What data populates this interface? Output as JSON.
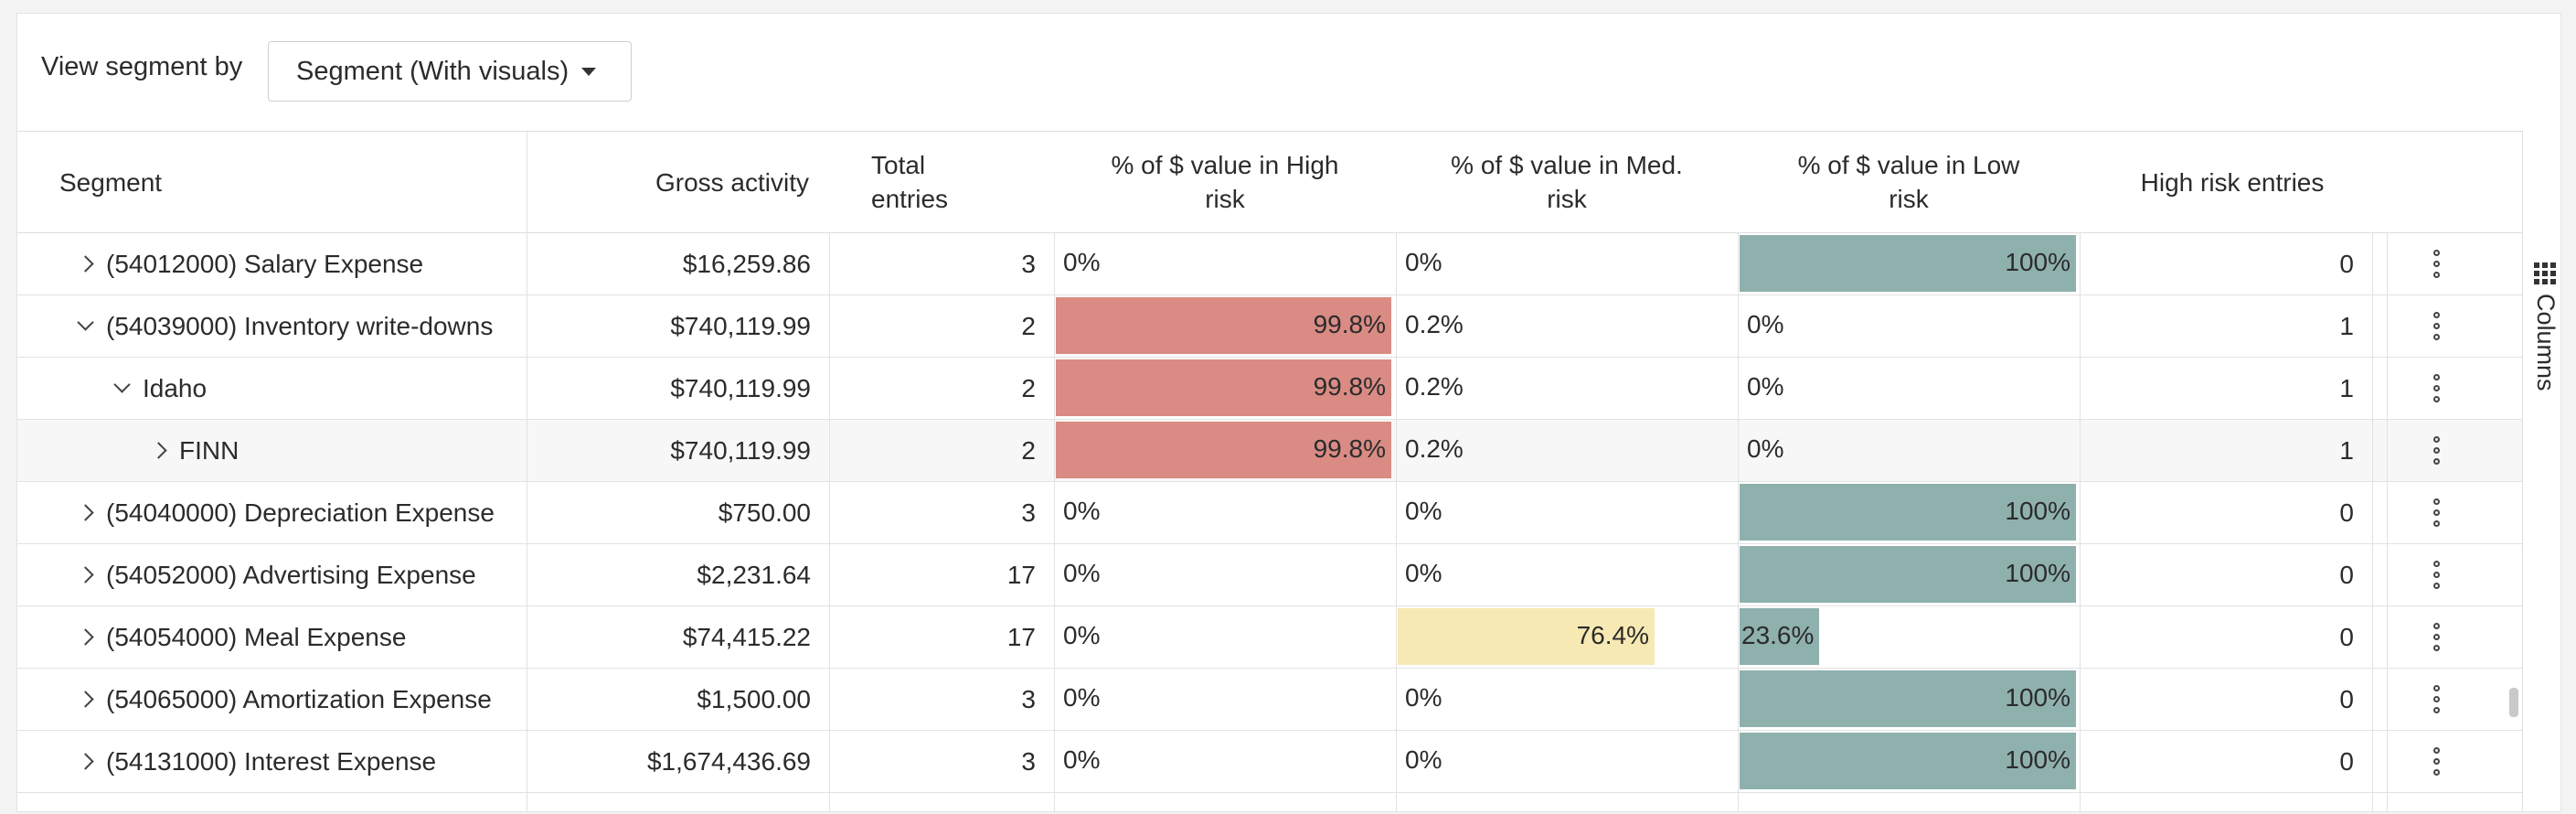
{
  "toolbar": {
    "view_label": "View segment by",
    "dropdown_value": "Segment (With visuals)"
  },
  "columns": {
    "segment": "Segment",
    "gross": "Gross activity",
    "total_l1": "Total",
    "total_l2": "entries",
    "high_l1": "% of $ value in High",
    "high_l2": "risk",
    "med_l1": "% of $ value in Med.",
    "med_l2": "risk",
    "low_l1": "% of $ value in Low",
    "low_l2": "risk",
    "hre": "High risk entries"
  },
  "sidebar": {
    "columns_label": "Columns"
  },
  "colors": {
    "high": "#d98b84",
    "med": "#f7e9b3",
    "low": "#8fb1ae"
  },
  "rows": [
    {
      "level": 0,
      "expanded": false,
      "segment": "(54012000) Salary Expense",
      "gross": "$16,259.86",
      "total": "3",
      "high": "0%",
      "high_v": 0,
      "med": "0%",
      "med_v": 0,
      "low": "100%",
      "low_v": 100,
      "hre": "0",
      "highlight": false
    },
    {
      "level": 0,
      "expanded": true,
      "segment": "(54039000) Inventory write-downs",
      "gross": "$740,119.99",
      "total": "2",
      "high": "99.8%",
      "high_v": 99.8,
      "med": "0.2%",
      "med_v": 0.2,
      "low": "0%",
      "low_v": 0,
      "hre": "1",
      "highlight": false
    },
    {
      "level": 1,
      "expanded": true,
      "segment": "Idaho",
      "gross": "$740,119.99",
      "total": "2",
      "high": "99.8%",
      "high_v": 99.8,
      "med": "0.2%",
      "med_v": 0.2,
      "low": "0%",
      "low_v": 0,
      "hre": "1",
      "highlight": false
    },
    {
      "level": 2,
      "expanded": false,
      "segment": "FINN",
      "gross": "$740,119.99",
      "total": "2",
      "high": "99.8%",
      "high_v": 99.8,
      "med": "0.2%",
      "med_v": 0.2,
      "low": "0%",
      "low_v": 0,
      "hre": "1",
      "highlight": true
    },
    {
      "level": 0,
      "expanded": false,
      "segment": "(54040000) Depreciation Expense",
      "gross": "$750.00",
      "total": "3",
      "high": "0%",
      "high_v": 0,
      "med": "0%",
      "med_v": 0,
      "low": "100%",
      "low_v": 100,
      "hre": "0",
      "highlight": false
    },
    {
      "level": 0,
      "expanded": false,
      "segment": "(54052000) Advertising Expense",
      "gross": "$2,231.64",
      "total": "17",
      "high": "0%",
      "high_v": 0,
      "med": "0%",
      "med_v": 0,
      "low": "100%",
      "low_v": 100,
      "hre": "0",
      "highlight": false
    },
    {
      "level": 0,
      "expanded": false,
      "segment": "(54054000) Meal Expense",
      "gross": "$74,415.22",
      "total": "17",
      "high": "0%",
      "high_v": 0,
      "med": "76.4%",
      "med_v": 76.4,
      "low": "23.6%",
      "low_v": 23.6,
      "hre": "0",
      "highlight": false
    },
    {
      "level": 0,
      "expanded": false,
      "segment": "(54065000) Amortization Expense",
      "gross": "$1,500.00",
      "total": "3",
      "high": "0%",
      "high_v": 0,
      "med": "0%",
      "med_v": 0,
      "low": "100%",
      "low_v": 100,
      "hre": "0",
      "highlight": false
    },
    {
      "level": 0,
      "expanded": false,
      "segment": "(54131000) Interest Expense",
      "gross": "$1,674,436.69",
      "total": "3",
      "high": "0%",
      "high_v": 0,
      "med": "0%",
      "med_v": 0,
      "low": "100%",
      "low_v": 100,
      "hre": "0",
      "highlight": false
    }
  ]
}
